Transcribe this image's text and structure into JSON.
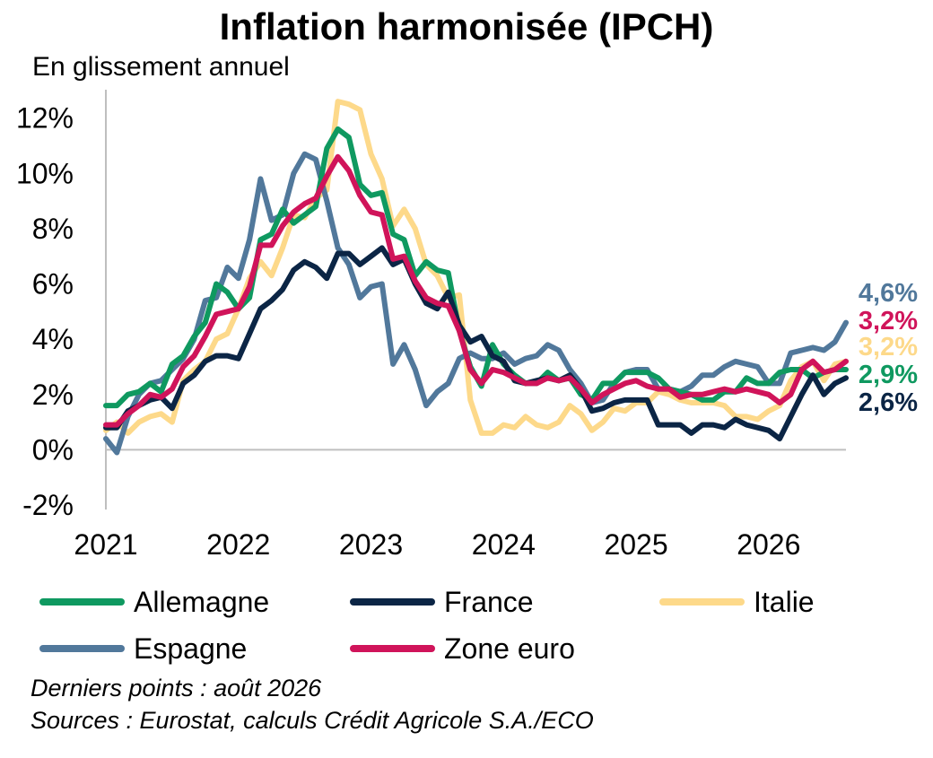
{
  "chart_data": {
    "type": "line",
    "title": "Inflation harmonisée (IPCH)",
    "subtitle": "En glissement annuel",
    "yticks": [
      "12%",
      "10%",
      "8%",
      "6%",
      "4%",
      "2%",
      "0%",
      "-2%"
    ],
    "ytick_values": [
      12,
      10,
      8,
      6,
      4,
      2,
      0,
      -2
    ],
    "ylim": [
      -2,
      12.5
    ],
    "xticks": [
      "2021",
      "2022",
      "2023",
      "2024",
      "2025",
      "2026"
    ],
    "xtick_months": [
      0,
      12,
      24,
      36,
      48,
      60
    ],
    "x_unit": "mois depuis janvier 2021",
    "x_range": [
      0,
      67
    ],
    "series": [
      {
        "name": "Allemagne",
        "color": "#0f9960",
        "end_label": "2,9%",
        "values": [
          1.6,
          1.6,
          2.0,
          2.1,
          2.4,
          2.1,
          3.1,
          3.4,
          4.1,
          4.6,
          6.0,
          5.7,
          5.1,
          5.5,
          7.6,
          7.8,
          8.7,
          8.2,
          8.5,
          8.8,
          10.9,
          11.6,
          11.3,
          9.6,
          9.2,
          9.3,
          7.8,
          7.6,
          6.3,
          6.8,
          6.5,
          6.4,
          4.3,
          3.0,
          2.3,
          3.8,
          3.1,
          2.7,
          2.4,
          2.4,
          2.8,
          2.5,
          2.6,
          2.0,
          1.8,
          2.4,
          2.4,
          2.8,
          2.8,
          2.8,
          2.6,
          2.2,
          2.1,
          2.0,
          1.8,
          1.8,
          2.1,
          2.1,
          2.6,
          2.4,
          2.4,
          2.8,
          2.9,
          2.9,
          2.6,
          2.8,
          2.9,
          2.9
        ]
      },
      {
        "name": "France",
        "color": "#0b2545",
        "end_label": "2,6%",
        "values": [
          0.8,
          0.8,
          1.4,
          1.6,
          1.8,
          1.9,
          1.5,
          2.4,
          2.7,
          3.2,
          3.4,
          3.4,
          3.3,
          4.2,
          5.1,
          5.4,
          5.8,
          6.5,
          6.8,
          6.6,
          6.2,
          7.1,
          7.1,
          6.7,
          7.0,
          7.3,
          6.7,
          6.9,
          6.0,
          5.3,
          5.1,
          5.7,
          4.5,
          3.9,
          4.1,
          3.4,
          3.2,
          2.5,
          2.4,
          2.5,
          2.6,
          2.5,
          2.7,
          2.2,
          1.4,
          1.5,
          1.7,
          1.8,
          1.8,
          1.8,
          0.9,
          0.9,
          0.9,
          0.6,
          0.9,
          0.9,
          0.8,
          1.1,
          0.9,
          0.8,
          0.7,
          0.4,
          1.2,
          2.0,
          2.7,
          2.0,
          2.4,
          2.6
        ]
      },
      {
        "name": "Italie",
        "color": "#fdd98a",
        "end_label": "3,2%",
        "values": [
          0.7,
          1.0,
          0.6,
          1.0,
          1.2,
          1.3,
          1.0,
          2.5,
          2.9,
          3.2,
          4.0,
          4.2,
          5.1,
          6.2,
          6.8,
          6.3,
          7.3,
          8.5,
          8.4,
          9.1,
          9.4,
          12.6,
          12.5,
          12.3,
          10.7,
          9.8,
          8.1,
          8.7,
          8.0,
          6.7,
          6.3,
          5.5,
          5.6,
          1.8,
          0.6,
          0.6,
          0.9,
          0.8,
          1.2,
          0.9,
          0.8,
          1.0,
          1.6,
          1.3,
          0.7,
          1.0,
          1.5,
          1.4,
          1.7,
          1.7,
          2.1,
          2.0,
          1.8,
          1.7,
          1.7,
          1.7,
          1.6,
          1.2,
          1.2,
          1.1,
          1.4,
          1.6,
          2.5,
          3.0,
          3.2,
          2.5,
          3.1,
          3.2
        ]
      },
      {
        "name": "Espagne",
        "color": "#51789b",
        "end_label": "4,6%",
        "values": [
          0.4,
          -0.1,
          1.2,
          2.0,
          2.4,
          2.5,
          2.9,
          3.3,
          4.0,
          5.4,
          5.5,
          6.6,
          6.2,
          7.6,
          9.8,
          8.3,
          8.5,
          10.0,
          10.7,
          10.5,
          9.0,
          7.3,
          6.7,
          5.5,
          5.9,
          6.0,
          3.1,
          3.8,
          2.9,
          1.6,
          2.1,
          2.4,
          3.3,
          3.5,
          3.3,
          3.3,
          3.5,
          3.1,
          3.3,
          3.4,
          3.8,
          3.6,
          2.9,
          2.4,
          1.7,
          1.8,
          2.4,
          2.8,
          2.9,
          2.9,
          2.2,
          2.2,
          2.1,
          2.3,
          2.7,
          2.7,
          3.0,
          3.2,
          3.1,
          3.0,
          2.4,
          2.4,
          3.5,
          3.6,
          3.7,
          3.6,
          3.9,
          4.6
        ]
      },
      {
        "name": "Zone euro",
        "color": "#d0145a",
        "end_label": "3,2%",
        "values": [
          0.9,
          0.9,
          1.3,
          1.6,
          2.0,
          1.9,
          2.2,
          3.0,
          3.4,
          4.1,
          4.9,
          5.0,
          5.1,
          5.9,
          7.4,
          7.4,
          8.1,
          8.6,
          8.9,
          9.1,
          9.9,
          10.6,
          10.1,
          9.2,
          8.6,
          8.5,
          6.9,
          7.0,
          6.1,
          5.5,
          5.3,
          5.2,
          4.3,
          2.9,
          2.4,
          2.9,
          2.8,
          2.6,
          2.4,
          2.4,
          2.6,
          2.5,
          2.6,
          2.2,
          1.7,
          2.0,
          2.2,
          2.4,
          2.5,
          2.3,
          2.2,
          2.2,
          1.9,
          2.0,
          2.0,
          2.1,
          2.2,
          2.1,
          2.2,
          2.1,
          2.0,
          1.7,
          2.0,
          2.9,
          3.2,
          2.8,
          2.9,
          3.2
        ]
      }
    ],
    "legend_position": "bottom",
    "grid": false
  },
  "legend": [
    {
      "label": "Allemagne",
      "color": "#0f9960"
    },
    {
      "label": "France",
      "color": "#0b2545"
    },
    {
      "label": "Italie",
      "color": "#fdd98a"
    },
    {
      "label": "Espagne",
      "color": "#51789b"
    },
    {
      "label": "Zone euro",
      "color": "#d0145a"
    }
  ],
  "footnotes": {
    "last_points": "Derniers points : août 2026",
    "sources": "Sources : Eurostat, calculs Crédit Agricole S.A./ECO"
  }
}
